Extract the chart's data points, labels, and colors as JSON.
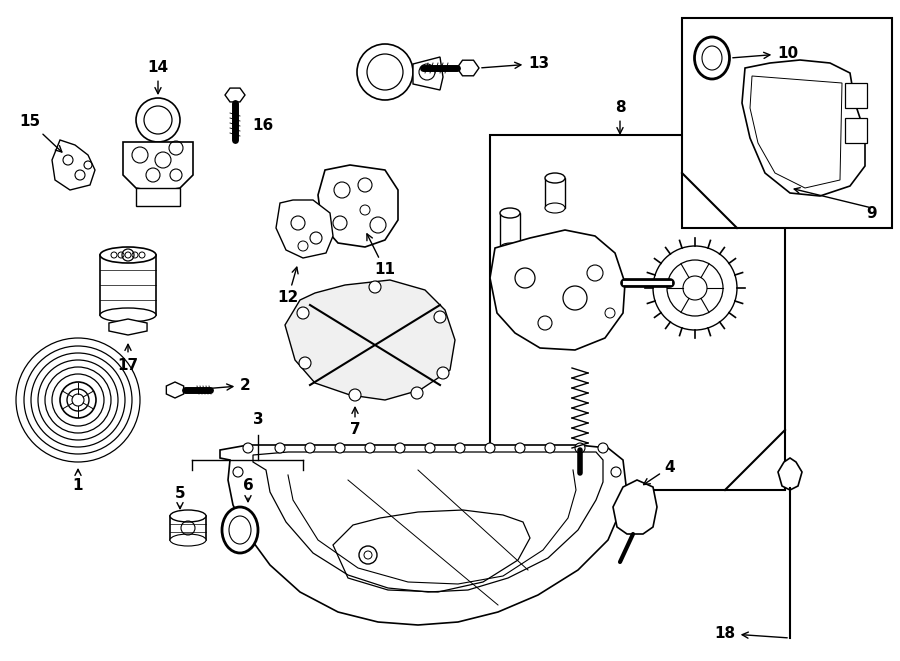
{
  "bg_color": "#ffffff",
  "fig_width": 9.0,
  "fig_height": 6.61,
  "dpi": 100
}
